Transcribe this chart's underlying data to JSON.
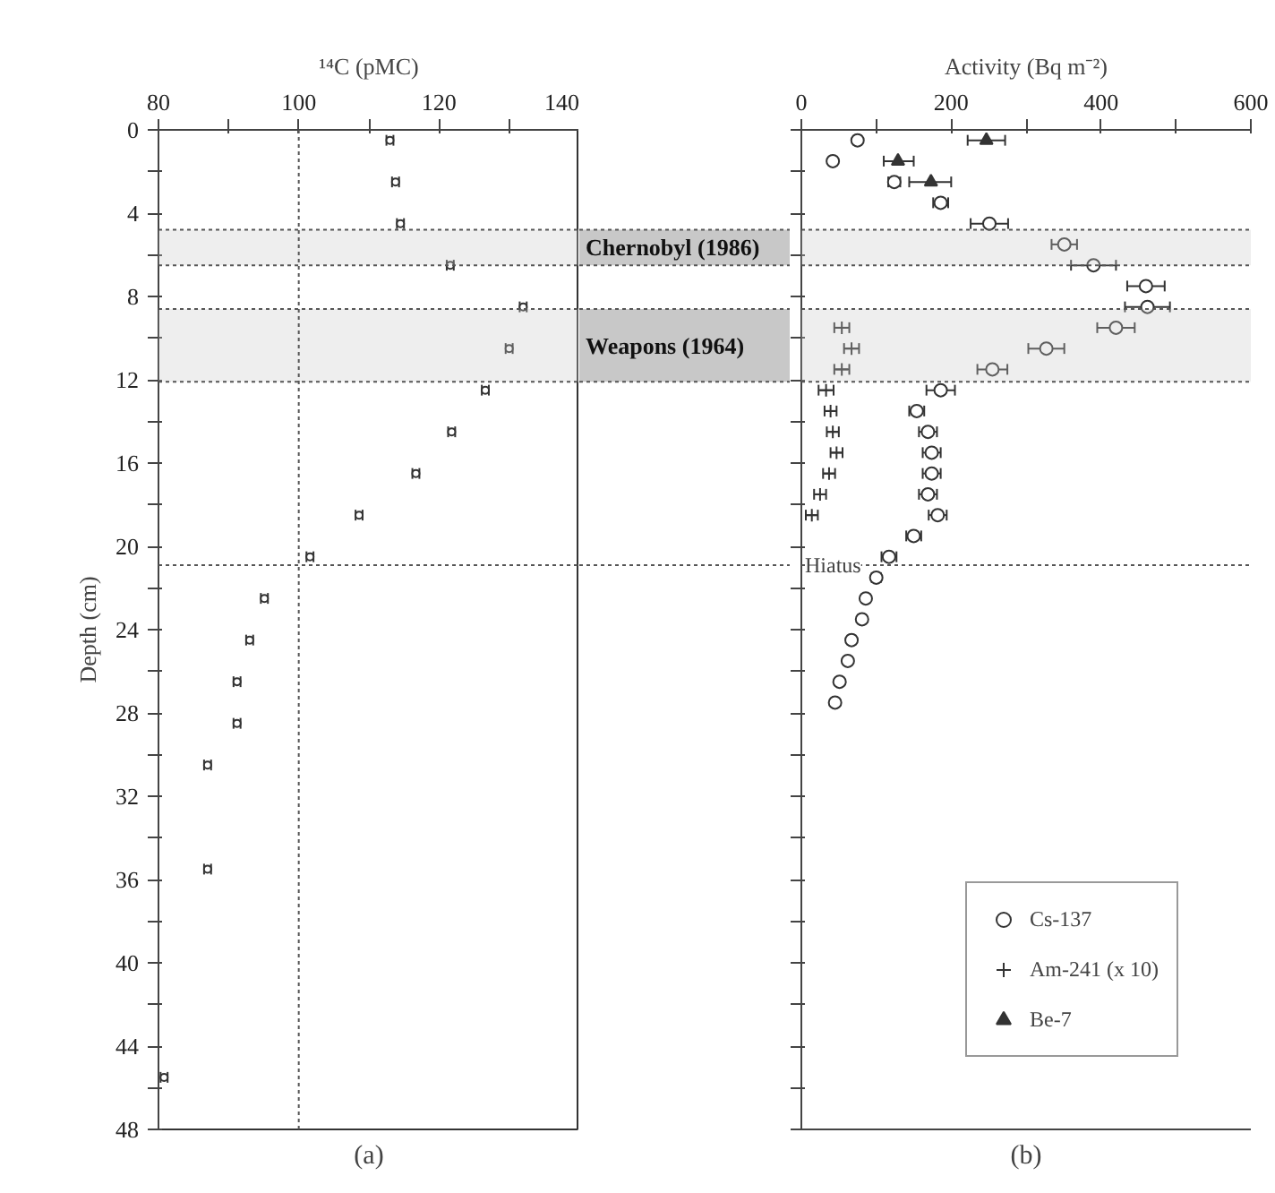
{
  "chart_data": [
    {
      "type": "scatter",
      "xlabel": "¹⁴C (pMC)",
      "ylabel": "Depth (cm)",
      "annotations": [
        "(a)"
      ],
      "marker": "circle",
      "xlim": [
        80,
        140
      ],
      "xticks": [
        80,
        {
          "value": 90,
          "label": null
        },
        100,
        {
          "value": 110,
          "label": null
        },
        120,
        {
          "value": 130,
          "label": null
        },
        140
      ],
      "ylim": [
        48,
        0
      ],
      "yticks": [
        0,
        {
          "value": 2,
          "label": null
        },
        4,
        {
          "value": 6,
          "label": null
        },
        8,
        {
          "value": 10,
          "label": null
        },
        12,
        {
          "value": 14,
          "label": null
        },
        16,
        {
          "value": 18,
          "label": null
        },
        20,
        {
          "value": 22,
          "label": null
        },
        24,
        {
          "value": 26,
          "label": null
        },
        28,
        {
          "value": 30,
          "label": null
        },
        32,
        {
          "value": 34,
          "label": null
        },
        36,
        {
          "value": 38,
          "label": null
        },
        40,
        {
          "value": 42,
          "label": null
        },
        44,
        {
          "value": 46,
          "label": null
        },
        48
      ],
      "series": [
        {
          "color": "#333333",
          "x": [
            113.0,
            113.8,
            114.5,
            121.6,
            132.0,
            130.0,
            126.6,
            121.8,
            116.7,
            108.6,
            101.6,
            95.1,
            93.0,
            91.2,
            91.2,
            87.0,
            87.0,
            80.8
          ],
          "values": [
            0.5,
            2.5,
            4.5,
            6.5,
            8.5,
            10.5,
            12.5,
            14.5,
            16.5,
            18.5,
            20.5,
            22.5,
            24.5,
            26.5,
            28.5,
            30.5,
            35.5,
            45.5
          ],
          "xerrors": [
            0.5,
            0.5,
            0.5,
            0.5,
            0.5,
            0.5,
            0.5,
            0.5,
            0.5,
            0.5,
            0.5,
            0.5,
            0.5,
            0.5,
            0.5,
            0.5,
            0.5,
            0.5
          ]
        }
      ],
      "ref_lines": [
        {
          "axis": "x",
          "value": 100,
          "line_style": "dotted"
        },
        {
          "axis": "y",
          "value": 20.9,
          "line_style": "dotted"
        }
      ],
      "bands": [
        {
          "axis": "y",
          "from": 4.8,
          "to": 6.5
        },
        {
          "axis": "y",
          "from": 8.6,
          "to": 12.1
        }
      ]
    },
    {
      "type": "scatter",
      "xlabel": "Activity (Bq m⁻²)",
      "annotations": [
        "(b)"
      ],
      "legend": "bottom right",
      "tick_labels": "x",
      "xlim": [
        0,
        600
      ],
      "xticks": [
        0,
        {
          "value": 100,
          "label": null
        },
        200,
        {
          "value": 300,
          "label": null
        },
        400,
        {
          "value": 500,
          "label": null
        },
        600
      ],
      "ylim": [
        48,
        0
      ],
      "yticks": [
        0,
        2,
        4,
        6,
        8,
        10,
        12,
        14,
        16,
        18,
        20,
        22,
        24,
        26,
        28,
        30,
        32,
        34,
        36,
        38,
        40,
        42,
        44,
        46,
        48
      ],
      "series": [
        {
          "name": "Cs-137",
          "color": "#333333",
          "marker": "circle",
          "x": [
            75,
            42,
            124,
            186,
            251,
            351,
            390,
            460,
            462,
            420,
            327,
            255,
            186,
            154,
            169,
            174,
            174,
            169,
            182,
            150,
            117,
            100,
            86,
            81,
            67,
            62,
            51,
            45
          ],
          "values": [
            0.5,
            1.5,
            2.5,
            3.5,
            4.5,
            5.5,
            6.5,
            7.5,
            8.5,
            9.5,
            10.5,
            11.5,
            12.5,
            13.5,
            14.5,
            15.5,
            16.5,
            17.5,
            18.5,
            19.5,
            20.5,
            21.5,
            22.5,
            23.5,
            24.5,
            25.5,
            26.5,
            27.5
          ],
          "xerrors": [
            5,
            5,
            8,
            10,
            25,
            17,
            30,
            25,
            30,
            25,
            24,
            20,
            19,
            10,
            12,
            12,
            12,
            12,
            12,
            10,
            10,
            6,
            5,
            5,
            5,
            4,
            4,
            4
          ]
        },
        {
          "name": "Am-241 (x 10)",
          "color": "#333333",
          "marker": "cross",
          "x": [
            54,
            67,
            54,
            33,
            39,
            42,
            47,
            37,
            25,
            14
          ],
          "values": [
            9.5,
            10.5,
            11.5,
            12.5,
            13.5,
            14.5,
            15.5,
            16.5,
            17.5,
            18.5
          ],
          "xerrors": [
            10,
            10,
            10,
            10,
            8,
            8,
            8,
            8,
            8,
            8
          ]
        },
        {
          "name": "Be-7",
          "color": "#333333",
          "marker": "triangle",
          "x": [
            247,
            129,
            173
          ],
          "values": [
            0.5,
            1.5,
            2.5
          ],
          "xerrors": [
            [
              222,
              272
            ],
            [
              110,
              150
            ],
            [
              144,
              200
            ]
          ]
        }
      ],
      "ref_lines": [
        {
          "axis": "y",
          "value": 20.9,
          "label": "Hiatus",
          "line_style": "dotted"
        }
      ],
      "bands": [
        {
          "axis": "y",
          "from": 4.8,
          "to": 6.5,
          "label": "Chernobyl (1986)",
          "color": "#c8c8c8"
        },
        {
          "axis": "y",
          "from": 8.6,
          "to": 12.1,
          "label": "Weapons (1964)",
          "color": "#c8c8c8"
        }
      ]
    }
  ]
}
